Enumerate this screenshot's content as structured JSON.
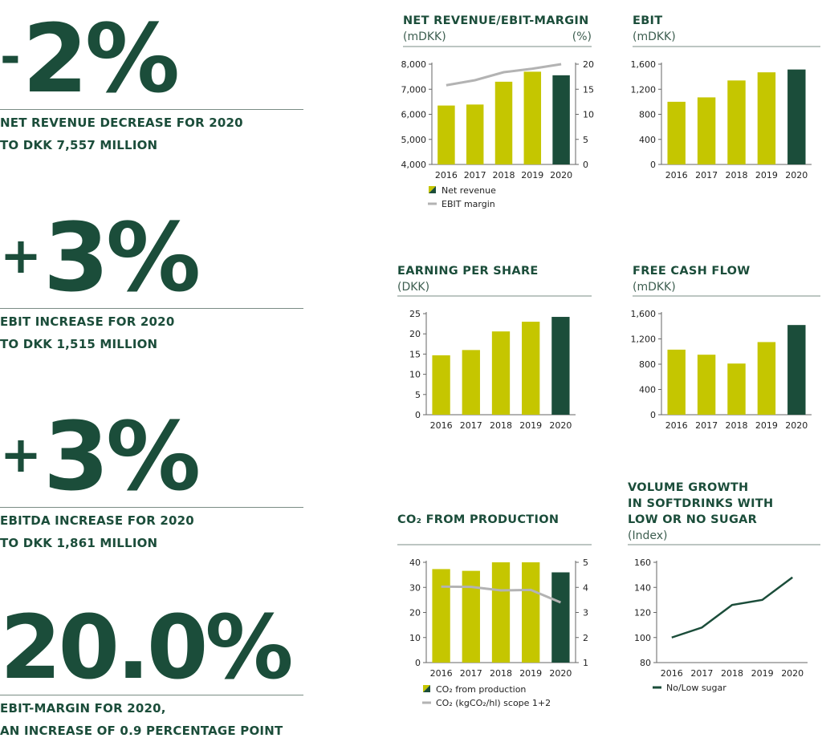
{
  "kpis": [
    {
      "sign": "-",
      "value": "2%",
      "line1": "NET REVENUE DECREASE FOR 2020",
      "line2": "TO DKK 7,557 MILLION"
    },
    {
      "sign": "+",
      "value": "3%",
      "line1": "EBIT INCREASE FOR 2020",
      "line2": "TO DKK 1,515 MILLION"
    },
    {
      "sign": "+",
      "value": "3%",
      "line1": "EBITDA INCREASE FOR 2020",
      "line2": "TO DKK 1,861 MILLION"
    },
    {
      "sign": "",
      "value": "20.0%",
      "line1": "EBIT-MARGIN FOR 2020,",
      "line2": "AN INCREASE OF 0.9 PERCENTAGE POINT"
    }
  ],
  "colors": {
    "bar": "#c5c600",
    "highlight": "#1b4d3a",
    "line_grey": "#b3b3b3",
    "axis": "#666666"
  },
  "chart_data": [
    {
      "id": "net-revenue",
      "type": "bar",
      "title_lines": [
        "NET REVENUE/EBIT-MARGIN"
      ],
      "unit_left": "(mDKK)",
      "unit_right": "(%)",
      "categories": [
        "2016",
        "2017",
        "2018",
        "2019",
        "2020"
      ],
      "values": [
        6350,
        6390,
        7300,
        7700,
        7557
      ],
      "ylim": [
        4000,
        8000
      ],
      "yticks": [
        "4,000",
        "5,000",
        "6,000",
        "7,000",
        "8,000"
      ],
      "y2lim": [
        0,
        20
      ],
      "y2ticks": [
        "0",
        "5",
        "10",
        "15",
        "20"
      ],
      "line_values": [
        15.8,
        16.8,
        18.4,
        19.1,
        20.0
      ],
      "legend": [
        "Net revenue",
        "EBIT margin"
      ]
    },
    {
      "id": "ebit",
      "type": "bar",
      "title_lines": [
        "EBIT"
      ],
      "unit_left": "(mDKK)",
      "unit_right": "",
      "categories": [
        "2016",
        "2017",
        "2018",
        "2019",
        "2020"
      ],
      "values": [
        1000,
        1070,
        1340,
        1470,
        1515
      ],
      "ylim": [
        0,
        1600
      ],
      "yticks": [
        "0",
        "400",
        "800",
        "1,200",
        "1,600"
      ],
      "legend": []
    },
    {
      "id": "eps",
      "type": "bar",
      "title_lines": [
        "EARNING PER SHARE"
      ],
      "unit_left": "(DKK)",
      "unit_right": "",
      "categories": [
        "2016",
        "2017",
        "2018",
        "2019",
        "2020"
      ],
      "values": [
        14.7,
        16.0,
        20.6,
        23.0,
        24.2
      ],
      "ylim": [
        0,
        25
      ],
      "yticks": [
        "0",
        "5",
        "10",
        "15",
        "20",
        "25"
      ],
      "legend": []
    },
    {
      "id": "fcf",
      "type": "bar",
      "title_lines": [
        "FREE CASH FLOW"
      ],
      "unit_left": "(mDKK)",
      "unit_right": "",
      "categories": [
        "2016",
        "2017",
        "2018",
        "2019",
        "2020"
      ],
      "values": [
        1030,
        950,
        810,
        1150,
        1420
      ],
      "ylim": [
        0,
        1600
      ],
      "yticks": [
        "0",
        "400",
        "800",
        "1,200",
        "1,600"
      ],
      "legend": []
    },
    {
      "id": "co2",
      "type": "bar",
      "title_lines": [
        "CO₂ FROM PRODUCTION"
      ],
      "unit_left": "",
      "unit_right": "",
      "categories": [
        "2016",
        "2017",
        "2018",
        "2019",
        "2020"
      ],
      "values": [
        37.3,
        36.6,
        40.2,
        40.3,
        36.0
      ],
      "ylim": [
        0,
        40
      ],
      "yticks": [
        "0",
        "10",
        "20",
        "30",
        "40"
      ],
      "y2lim": [
        1,
        5
      ],
      "y2ticks": [
        "1",
        "2",
        "3",
        "4",
        "5"
      ],
      "line_values": [
        4.03,
        4.02,
        3.88,
        3.9,
        3.4
      ],
      "legend": [
        "CO₂ from production",
        "CO₂ (kgCO₂/hl) scope 1+2"
      ]
    },
    {
      "id": "volume",
      "type": "line",
      "title_lines": [
        "VOLUME GROWTH",
        "IN SOFTDRINKS WITH",
        "LOW OR NO SUGAR"
      ],
      "unit_left": "(Index)",
      "unit_right": "",
      "categories": [
        "2016",
        "2017",
        "2018",
        "2019",
        "2020"
      ],
      "values": [
        100,
        108,
        126,
        130,
        148
      ],
      "ylim": [
        80,
        160
      ],
      "yticks": [
        "80",
        "100",
        "120",
        "140",
        "160"
      ],
      "legend": [
        "No/Low sugar"
      ]
    }
  ]
}
